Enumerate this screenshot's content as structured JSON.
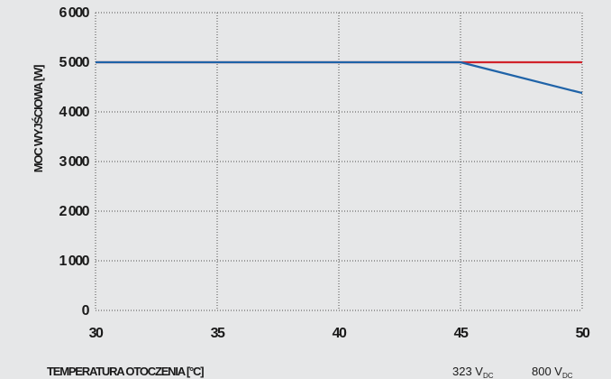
{
  "chart_data": {
    "type": "line",
    "xlabel": "TEMPERATURA OTOCZENIA [°C]",
    "ylabel": "MOC WYJŚCIOWA [W]",
    "xlim": [
      30,
      50
    ],
    "ylim": [
      0,
      6000
    ],
    "x_ticks": [
      "30",
      "35",
      "40",
      "45",
      "50"
    ],
    "y_ticks": [
      "0",
      "1 000",
      "2 000",
      "3 000",
      "4 000",
      "5 000",
      "6 000"
    ],
    "grid": true,
    "legend_position": "bottom-right",
    "series": [
      {
        "name": "323 V",
        "name_sub": "DC",
        "color": "#1f63a8",
        "x": [
          30,
          45,
          50
        ],
        "y": [
          5000,
          5000,
          4380
        ]
      },
      {
        "name": "800 V",
        "name_sub": "DC",
        "color": "#d1232a",
        "x": [
          30,
          45,
          50
        ],
        "y": [
          5000,
          5000,
          5000
        ]
      }
    ]
  }
}
